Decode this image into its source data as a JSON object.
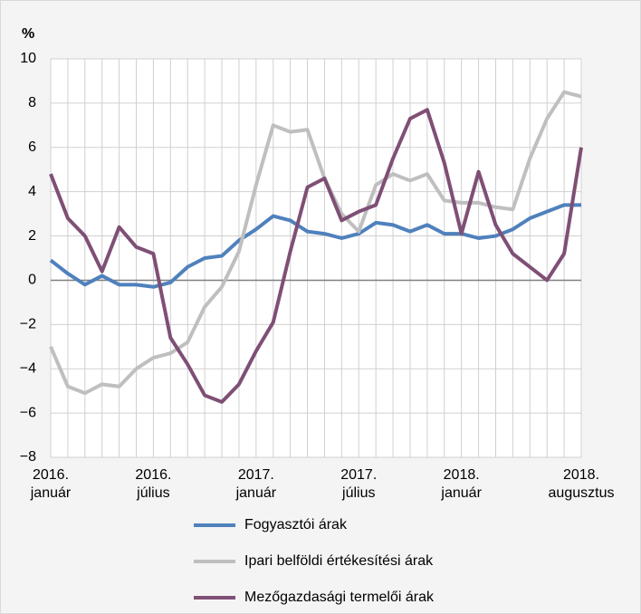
{
  "chart_data": {
    "type": "line",
    "ylabel": "%",
    "categories": [
      "2016. január",
      null,
      null,
      null,
      null,
      null,
      "2016. július",
      null,
      null,
      null,
      null,
      null,
      "2017. január",
      null,
      null,
      null,
      null,
      null,
      "2017. július",
      null,
      null,
      null,
      null,
      null,
      "2018. január",
      null,
      null,
      null,
      null,
      null,
      null,
      "2018. augusztus"
    ],
    "series": [
      {
        "name": "Fogyasztói árak",
        "color": "#4f81bd",
        "values": [
          0.9,
          0.3,
          -0.2,
          0.2,
          -0.2,
          -0.2,
          -0.3,
          -0.1,
          0.6,
          1.0,
          1.1,
          1.8,
          2.3,
          2.9,
          2.7,
          2.2,
          2.1,
          1.9,
          2.1,
          2.6,
          2.5,
          2.2,
          2.5,
          2.1,
          2.1,
          1.9,
          2.0,
          2.3,
          2.8,
          3.1,
          3.4,
          3.4
        ]
      },
      {
        "name": "Ipari belföldi értékesítési árak",
        "color": "#bfbfbf",
        "values": [
          -3.0,
          -4.8,
          -5.1,
          -4.7,
          -4.8,
          -4.0,
          -3.5,
          -3.3,
          -2.8,
          -1.2,
          -0.3,
          1.3,
          4.3,
          7.0,
          6.7,
          6.8,
          4.6,
          3.0,
          2.2,
          4.3,
          4.8,
          4.5,
          4.8,
          3.6,
          3.5,
          3.5,
          3.3,
          3.2,
          5.5,
          7.3,
          8.5,
          8.3
        ]
      },
      {
        "name": "Mezőgazdasági termelői árak",
        "color": "#7f4f75",
        "values": [
          4.8,
          2.8,
          2.0,
          0.4,
          2.4,
          1.5,
          1.2,
          -2.6,
          -3.8,
          -5.2,
          -5.5,
          -4.7,
          -3.2,
          -1.9,
          1.3,
          4.2,
          4.6,
          2.7,
          3.1,
          3.4,
          5.5,
          7.3,
          7.7,
          5.3,
          2.1,
          4.9,
          2.5,
          1.2,
          0.6,
          0.0,
          1.2,
          6.0
        ]
      }
    ],
    "ylim": [
      -8,
      10
    ],
    "yticks": [
      {
        "value": -8,
        "label": "−8"
      },
      {
        "value": -6,
        "label": "−6"
      },
      {
        "value": -4,
        "label": "−4"
      },
      {
        "value": -2,
        "label": "−2"
      },
      0,
      2,
      4,
      6,
      8,
      10
    ],
    "grid": true
  }
}
